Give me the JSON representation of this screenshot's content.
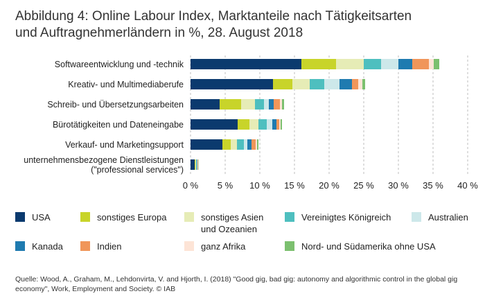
{
  "title": "Abbildung 4: Online Labour Index, Marktanteile nach Tätigkeitsarten\nund Auftragnehmerländern in %, 28. August 2018",
  "source": "Quelle: Wood, A., Graham, M., Lehdonvirta, V. and Hjorth, I. (2018) \"Good gig, bad gig: autonomy and algorithmic control in the global gig economy\", Work, Employment and Society. © IAB",
  "chart_data": {
    "type": "bar",
    "orientation": "horizontal",
    "stacked": true,
    "categories": [
      "Softwareentwicklung und -technik",
      "Kreativ- und Multimediaberufe",
      "Schreib- und Übersetzungsarbeiten",
      "Bürotätigkeiten und Dateneingabe",
      "Verkauf- und Marketingsupport",
      "unternehmensbezogene Dienstleistungen\n(\"professional services\")"
    ],
    "series": [
      {
        "name": "USA",
        "color": "#0b3a6e",
        "values": [
          16.0,
          11.9,
          4.2,
          6.8,
          4.6,
          0.6
        ]
      },
      {
        "name": "sonstiges Europa",
        "color": "#c8d42a",
        "values": [
          5.0,
          2.8,
          3.1,
          1.7,
          1.2,
          0.1
        ]
      },
      {
        "name": "sonstiges Asien\nund Ozeanien",
        "color": "#e6ecb6",
        "values": [
          4.0,
          2.5,
          2.0,
          1.3,
          0.9,
          0.1
        ]
      },
      {
        "name": "Vereinigtes Königreich",
        "color": "#4ebfbf",
        "values": [
          2.5,
          2.1,
          1.3,
          1.2,
          1.0,
          0.1
        ]
      },
      {
        "name": "Australien",
        "color": "#cde8ea",
        "values": [
          2.5,
          2.2,
          0.7,
          0.8,
          0.5,
          0.05
        ]
      },
      {
        "name": "Kanada",
        "color": "#1f7bb0",
        "values": [
          2.0,
          1.8,
          0.7,
          0.6,
          0.6,
          0.05
        ]
      },
      {
        "name": "Indien",
        "color": "#f0965a",
        "values": [
          2.4,
          0.9,
          0.9,
          0.4,
          0.6,
          0.05
        ]
      },
      {
        "name": "ganz Afrika",
        "color": "#fde4d6",
        "values": [
          0.7,
          0.6,
          0.3,
          0.2,
          0.2,
          0.05
        ]
      },
      {
        "name": "Nord- und Südamerika ohne USA",
        "color": "#7cc06f",
        "values": [
          0.8,
          0.4,
          0.3,
          0.2,
          0.2,
          0.05
        ]
      }
    ],
    "xlim": [
      0,
      40
    ],
    "xticks": [
      0,
      5,
      10,
      15,
      20,
      25,
      30,
      35,
      40
    ],
    "xtick_labels": [
      "0 %",
      "5 %",
      "10 %",
      "15 %",
      "20 %",
      "25 %",
      "30 %",
      "35 %",
      "40 %"
    ],
    "grid": "vertical-dashed",
    "legend_position": "bottom"
  }
}
